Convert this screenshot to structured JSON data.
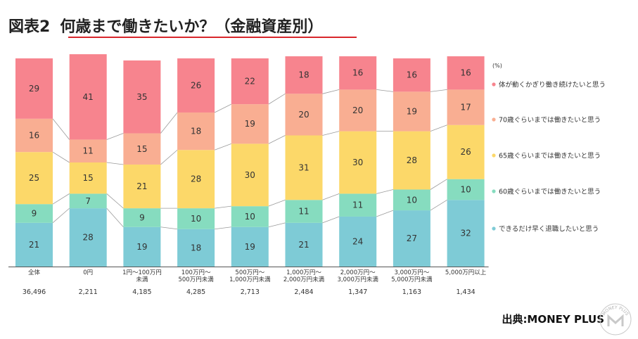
{
  "title": {
    "prefix": "図表2",
    "main": "何歳まで働きたいか？（金融資産別）"
  },
  "source": "出典:MONEY PLUS",
  "logo": {
    "arc_text": "MONEY PLUS",
    "color": "#c9c9c9"
  },
  "chart_data": {
    "type": "bar",
    "stacked": true,
    "normalized": true,
    "unit_label": "(%)",
    "title": "何歳まで働きたいか？（金融資産別）",
    "categories": [
      [
        "全体"
      ],
      [
        "0円"
      ],
      [
        "1円〜100万円",
        "未満"
      ],
      [
        "100万円〜",
        "500万円未満"
      ],
      [
        "500万円〜",
        "1,000万円未満"
      ],
      [
        "1,000万円〜",
        "2,000万円未満"
      ],
      [
        "2,000万円〜",
        "3,000万円未満"
      ],
      [
        "3,000万円〜",
        "5,000万円未満"
      ],
      [
        "5,000万円以上"
      ]
    ],
    "sample_sizes": [
      "36,496",
      "2,211",
      "4,185",
      "4,285",
      "2,713",
      "2,484",
      "1,347",
      "1,163",
      "1,434"
    ],
    "series": [
      {
        "name": "できるだけ早く退職したいと思う",
        "color": "#7ecbd6",
        "values": [
          21,
          28,
          19,
          18,
          19,
          21,
          24,
          27,
          32
        ]
      },
      {
        "name": "60歳ぐらいまでは働きたいと思う",
        "color": "#86dcbf",
        "values": [
          9,
          7,
          9,
          10,
          10,
          11,
          11,
          10,
          10
        ]
      },
      {
        "name": "65歳ぐらいまでは働きたいと思う",
        "color": "#fcd869",
        "values": [
          25,
          15,
          21,
          28,
          30,
          31,
          30,
          28,
          26
        ]
      },
      {
        "name": "70歳ぐらいまでは働きたいと思う",
        "color": "#f9ae92",
        "values": [
          16,
          11,
          15,
          18,
          19,
          20,
          20,
          19,
          17
        ]
      },
      {
        "name": "体が動くかぎり働き続けたいと思う",
        "color": "#f7848e",
        "values": [
          29,
          41,
          35,
          26,
          22,
          18,
          16,
          16,
          16
        ]
      }
    ],
    "ylim": [
      0,
      100
    ],
    "legend_position": "right"
  }
}
